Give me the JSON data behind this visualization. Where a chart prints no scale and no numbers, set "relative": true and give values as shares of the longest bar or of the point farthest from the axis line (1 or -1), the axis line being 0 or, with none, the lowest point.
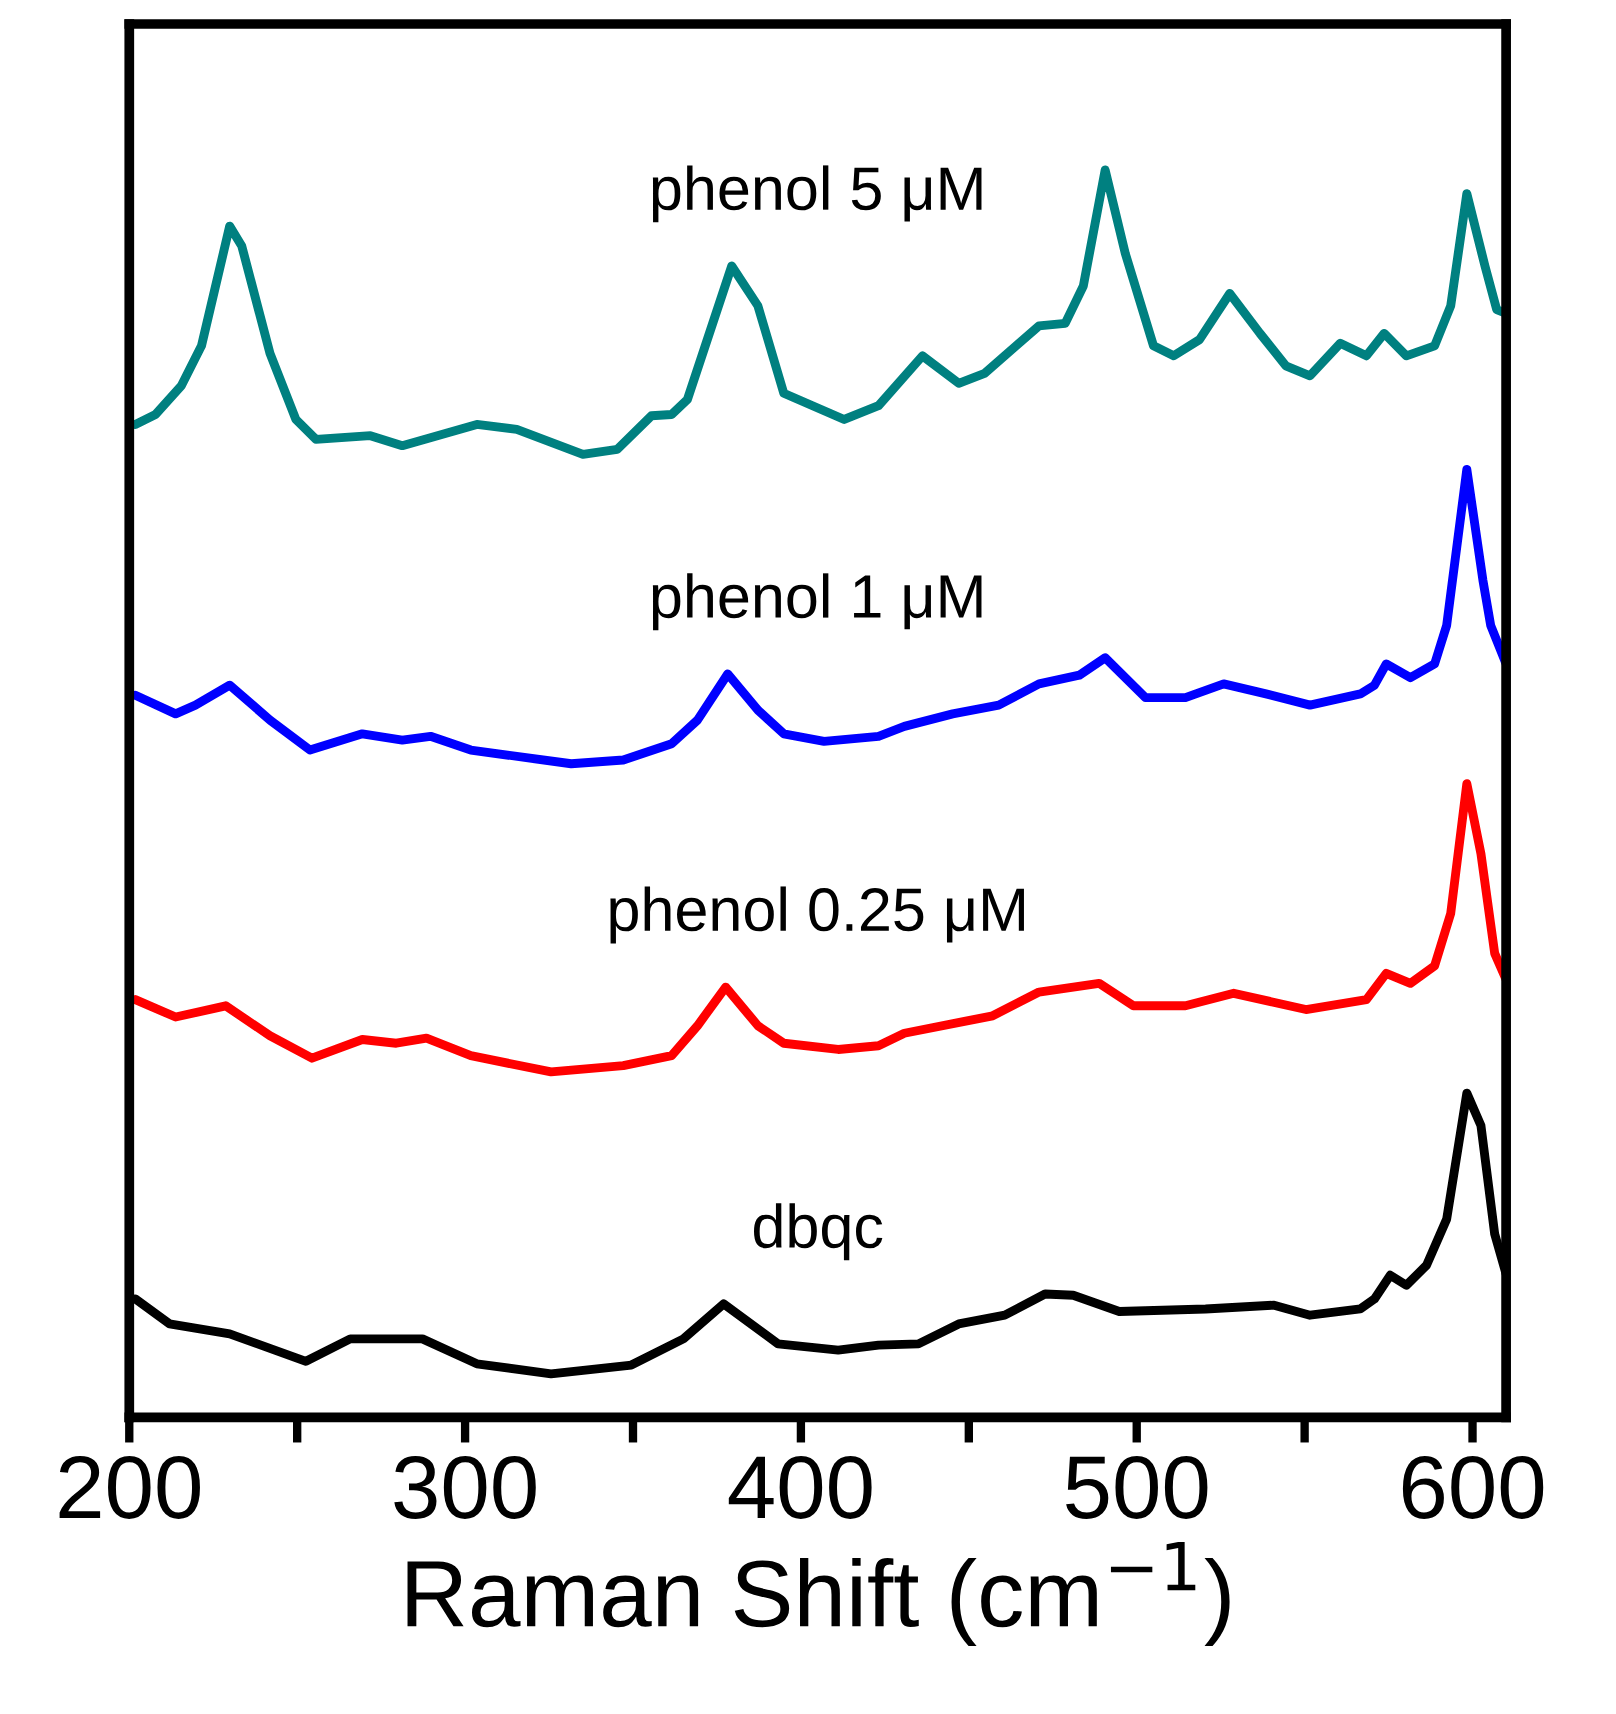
{
  "chart_data": {
    "type": "line",
    "relative": true,
    "xlabel": "Raman Shift (cm$^{−1}$)",
    "xlim": [
      200,
      610
    ],
    "xticks": [
      200,
      {
        "value": 250,
        "label": null
      },
      300,
      {
        "value": 350,
        "label": null
      },
      400,
      {
        "value": 450,
        "label": null
      },
      500,
      {
        "value": 550,
        "label": null
      },
      600
    ],
    "tick_labels": "x",
    "legend": false,
    "grid": false,
    "marker": "none",
    "line_style": "solid",
    "series": [
      {
        "name": "phenol 5 μM",
        "color": "#008080",
        "x": [
          201.8,
          207.8,
          215.5,
          221.5,
          229.9,
          233.5,
          241.9,
          249.6,
          255.6,
          271.8,
          281.3,
          303.5,
          315.4,
          335.1,
          345.3,
          355.5,
          361.5,
          366.2,
          379.4,
          387.2,
          394.9,
          412.9,
          423.1,
          436.2,
          447.0,
          454.7,
          470.9,
          478.7,
          484.1,
          490.6,
          496.6,
          505.0,
          511.0,
          518.7,
          527.7,
          536.7,
          544.4,
          551.6,
          560.6,
          568.4,
          573.7,
          580.3,
          588.7,
          593.5,
          598.3,
          603.7,
          607.2,
          610
        ],
        "values": [
          0.796,
          0.804,
          0.827,
          0.859,
          0.955,
          0.939,
          0.853,
          0.8,
          0.784,
          0.787,
          0.779,
          0.796,
          0.792,
          0.772,
          0.776,
          0.803,
          0.804,
          0.816,
          0.923,
          0.891,
          0.821,
          0.8,
          0.811,
          0.851,
          0.829,
          0.837,
          0.875,
          0.877,
          0.907,
          1.0,
          0.933,
          0.859,
          0.851,
          0.864,
          0.901,
          0.869,
          0.843,
          0.835,
          0.861,
          0.851,
          0.869,
          0.851,
          0.859,
          0.891,
          0.981,
          0.923,
          0.888,
          0.885
        ]
      },
      {
        "name": "phenol 1 μM",
        "color": "#0000ff",
        "x": [
          201.8,
          213.8,
          219.7,
          229.9,
          241.9,
          253.8,
          269.4,
          281.3,
          289.7,
          301.7,
          331.6,
          347.1,
          361.5,
          369.2,
          378.2,
          387.2,
          394.9,
          406.9,
          423.1,
          430.8,
          445.2,
          458.9,
          470.9,
          482.9,
          490.6,
          502.6,
          514.5,
          525.9,
          538.5,
          551.6,
          566.6,
          570.8,
          574.3,
          581.5,
          588.7,
          592.3,
          598.3,
          603.1,
          605.4,
          610
        ],
        "values": [
          0.579,
          0.564,
          0.571,
          0.587,
          0.559,
          0.535,
          0.548,
          0.543,
          0.546,
          0.535,
          0.524,
          0.527,
          0.54,
          0.559,
          0.596,
          0.567,
          0.548,
          0.542,
          0.546,
          0.554,
          0.564,
          0.571,
          0.588,
          0.595,
          0.609,
          0.577,
          0.577,
          0.588,
          0.58,
          0.571,
          0.58,
          0.587,
          0.604,
          0.593,
          0.604,
          0.635,
          0.76,
          0.671,
          0.635,
          0.604
        ]
      },
      {
        "name": "phenol 0.25 μM",
        "color": "#ff0000",
        "x": [
          201.8,
          213.8,
          228.7,
          241.9,
          254.4,
          269.4,
          279.5,
          288.5,
          301.7,
          325.6,
          347.1,
          361.5,
          369.2,
          377.6,
          387.2,
          394.9,
          411.1,
          423.1,
          430.8,
          457.1,
          470.9,
          488.8,
          499.0,
          514.5,
          528.9,
          550.4,
          568.4,
          574.3,
          581.5,
          588.7,
          593.5,
          598.3,
          602.5,
          606.6,
          610
        ],
        "values": [
          0.335,
          0.321,
          0.33,
          0.306,
          0.288,
          0.303,
          0.3,
          0.304,
          0.29,
          0.277,
          0.282,
          0.29,
          0.314,
          0.345,
          0.314,
          0.3,
          0.295,
          0.298,
          0.308,
          0.322,
          0.341,
          0.348,
          0.33,
          0.33,
          0.34,
          0.327,
          0.335,
          0.356,
          0.348,
          0.362,
          0.404,
          0.508,
          0.452,
          0.372,
          0.351
        ]
      },
      {
        "name": "dbqc",
        "color": "#000000",
        "x": [
          201.8,
          212.0,
          229.9,
          252.6,
          265.8,
          287.3,
          303.5,
          325.6,
          349.5,
          365.0,
          377.0,
          393.2,
          411.1,
          423.1,
          435.0,
          447.0,
          460.7,
          472.7,
          481.1,
          494.8,
          520.5,
          540.9,
          551.6,
          566.6,
          570.8,
          575.5,
          580.3,
          586.3,
          592.3,
          598.3,
          602.5,
          606.6,
          610
        ],
        "values": [
          0.095,
          0.075,
          0.067,
          0.045,
          0.063,
          0.063,
          0.043,
          0.035,
          0.042,
          0.063,
          0.091,
          0.059,
          0.054,
          0.058,
          0.059,
          0.075,
          0.082,
          0.099,
          0.098,
          0.085,
          0.087,
          0.09,
          0.082,
          0.087,
          0.095,
          0.114,
          0.106,
          0.122,
          0.159,
          0.26,
          0.234,
          0.147,
          0.115
        ]
      }
    ]
  }
}
